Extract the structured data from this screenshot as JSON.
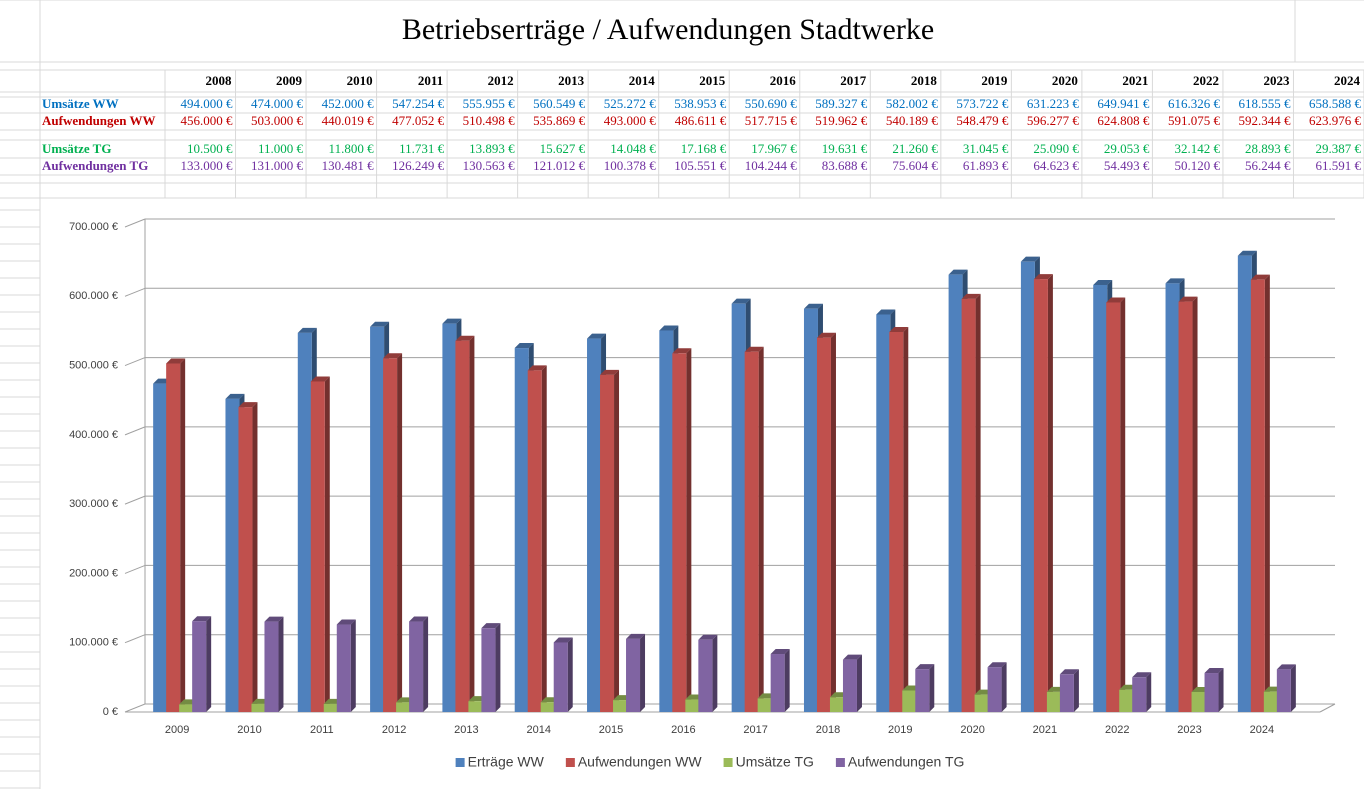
{
  "table": {
    "title": "Betriebserträge / Aufwendungen Stadtwerke",
    "years": [
      "2008",
      "2009",
      "2010",
      "2011",
      "2012",
      "2013",
      "2014",
      "2015",
      "2016",
      "2017",
      "2018",
      "2019",
      "2020",
      "2021",
      "2022",
      "2023",
      "2024"
    ],
    "rows": [
      {
        "label": "Umsätze WW",
        "color": "#0070c0",
        "cells": [
          "494.000 €",
          "474.000 €",
          "452.000 €",
          "547.254 €",
          "555.955 €",
          "560.549 €",
          "525.272 €",
          "538.953 €",
          "550.690 €",
          "589.327 €",
          "582.002 €",
          "573.722 €",
          "631.223 €",
          "649.941 €",
          "616.326 €",
          "618.555 €",
          "658.588 €"
        ]
      },
      {
        "label": "Aufwendungen WW",
        "color": "#c00000",
        "cells": [
          "456.000 €",
          "503.000 €",
          "440.019 €",
          "477.052 €",
          "510.498 €",
          "535.869 €",
          "493.000 €",
          "486.611 €",
          "517.715 €",
          "519.962 €",
          "540.189 €",
          "548.479 €",
          "596.277 €",
          "624.808 €",
          "591.075 €",
          "592.344 €",
          "623.976 €"
        ]
      },
      {
        "label": "Umsätze TG",
        "color": "#00b050",
        "cells": [
          "10.500 €",
          "11.000 €",
          "11.800 €",
          "11.731 €",
          "13.893 €",
          "15.627 €",
          "14.048 €",
          "17.168 €",
          "17.967 €",
          "19.631 €",
          "21.260 €",
          "31.045 €",
          "25.090 €",
          "29.053 €",
          "32.142 €",
          "28.893 €",
          "29.387 €"
        ]
      },
      {
        "label": "Aufwendungen TG",
        "color": "#7030a0",
        "cells": [
          "133.000 €",
          "131.000 €",
          "130.481 €",
          "126.249 €",
          "130.563 €",
          "121.012 €",
          "100.378 €",
          "105.551 €",
          "104.244 €",
          "83.688 €",
          "75.604 €",
          "61.893 €",
          "64.623 €",
          "54.493 €",
          "50.120 €",
          "56.244 €",
          "61.591 €"
        ]
      }
    ]
  },
  "chart_data": {
    "type": "bar",
    "categories": [
      "2009",
      "2010",
      "2011",
      "2012",
      "2013",
      "2014",
      "2015",
      "2016",
      "2017",
      "2018",
      "2019",
      "2020",
      "2021",
      "2022",
      "2023",
      "2024"
    ],
    "series": [
      {
        "name": "Erträge WW",
        "color": "#4f81bd",
        "values": [
          474000,
          452000,
          547254,
          555955,
          560549,
          525272,
          538953,
          550690,
          589327,
          582002,
          573722,
          631223,
          649941,
          616326,
          618555,
          658588
        ]
      },
      {
        "name": "Aufwendungen WW",
        "color": "#c0504d",
        "values": [
          503000,
          440019,
          477052,
          510498,
          535869,
          493000,
          486611,
          517715,
          519962,
          540189,
          548479,
          596277,
          624808,
          591075,
          592344,
          623976
        ]
      },
      {
        "name": "Umsätze TG",
        "color": "#9bbb59",
        "values": [
          11000,
          11800,
          11731,
          13893,
          15627,
          14048,
          17168,
          17967,
          19631,
          21260,
          31045,
          25090,
          29053,
          32142,
          28893,
          29387
        ]
      },
      {
        "name": "Aufwendungen TG",
        "color": "#8064a2",
        "values": [
          131000,
          130481,
          126249,
          130563,
          121012,
          100378,
          105551,
          104244,
          83688,
          75604,
          61893,
          64623,
          54493,
          50120,
          56244,
          61591
        ]
      }
    ],
    "ylim": [
      0,
      700000
    ],
    "yticks": [
      {
        "value": 0,
        "label": "0 €"
      },
      {
        "value": 100000,
        "label": "100.000 €"
      },
      {
        "value": 200000,
        "label": "200.000 €"
      },
      {
        "value": 300000,
        "label": "300.000 €"
      },
      {
        "value": 400000,
        "label": "400.000 €"
      },
      {
        "value": 500000,
        "label": "500.000 €"
      },
      {
        "value": 600000,
        "label": "600.000 €"
      },
      {
        "value": 700000,
        "label": "700.000 €"
      }
    ],
    "grid": true,
    "legend": "bottom"
  }
}
